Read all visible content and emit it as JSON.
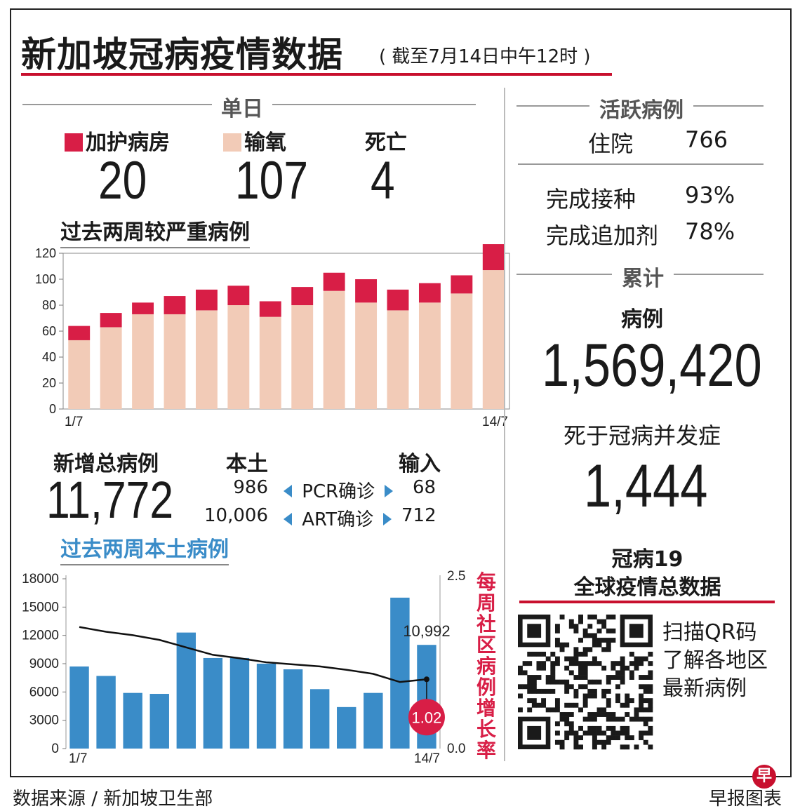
{
  "header": {
    "title": "新加坡冠病疫情数据",
    "subtitle": "( 截至7月14日中午12时 )"
  },
  "daily": {
    "section_label": "单日",
    "icu_label": "加护病房",
    "icu_value": "20",
    "oxygen_label": "输氧",
    "oxygen_value": "107",
    "death_label": "死亡",
    "death_value": "4",
    "colors": {
      "icu": "#d81e46",
      "oxygen": "#f2cbb7"
    }
  },
  "severe_chart_title": "过去两周较严重病例",
  "new_cases": {
    "total_label": "新增总病例",
    "total_value": "11,772",
    "local_label": "本土",
    "imported_label": "输入",
    "pcr_label": "PCR确诊",
    "art_label": "ART确诊",
    "pcr_local": "986",
    "pcr_imported": "68",
    "art_local": "10,006",
    "art_imported": "712"
  },
  "local_chart_title": "过去两周本土病例",
  "right_panel": {
    "active_label": "活跃病例",
    "hosp_label": "住院",
    "hosp_value": "766",
    "vacc_label": "完成接种",
    "vacc_value": "93%",
    "booster_label": "完成追加剂",
    "booster_value": "78%",
    "cumulative_label": "累计",
    "cases_label": "病例",
    "cases_value": "1,569,420",
    "deaths_label": "死于冠病并发症",
    "deaths_value": "1,444",
    "global_title_1": "冠病19",
    "global_title_2": "全球疫情总数据",
    "qr_text_1": "扫描QR码",
    "qr_text_2": "了解各地区",
    "qr_text_3": "最新病例"
  },
  "footer": {
    "source": "数据来源 / 新加坡卫生部",
    "credit": "早报图表",
    "logo_char": "早"
  },
  "chart_data": [
    {
      "type": "bar",
      "title": "过去两周较严重病例",
      "stacked": true,
      "x_tick_labels": [
        "1/7",
        "14/7"
      ],
      "ylim": [
        0,
        120
      ],
      "y_ticks": [
        0,
        20,
        40,
        60,
        80,
        100,
        120
      ],
      "series": [
        {
          "name": "输氧",
          "color": "#f2cbb7",
          "values": [
            53,
            63,
            73,
            73,
            76,
            80,
            71,
            80,
            91,
            82,
            76,
            82,
            89,
            107
          ]
        },
        {
          "name": "加护病房",
          "color": "#d81e46",
          "values": [
            11,
            11,
            9,
            14,
            16,
            15,
            12,
            14,
            14,
            18,
            16,
            15,
            14,
            20
          ]
        }
      ],
      "grid": false
    },
    {
      "type": "bar",
      "title": "过去两周本土病例",
      "x_tick_labels": [
        "1/7",
        "14/7"
      ],
      "ylim": [
        0,
        18000
      ],
      "y_ticks": [
        "0",
        "3000",
        "6000",
        "9000",
        "12000",
        "15000",
        "18000"
      ],
      "bar_color": "#3a8cc8",
      "values": [
        8700,
        7700,
        5900,
        5800,
        12300,
        9600,
        9600,
        9000,
        8400,
        6300,
        4400,
        5900,
        16000,
        10992
      ],
      "bar_label_last": "10,992",
      "secondary_axis": {
        "label": "每周社区病例增长率",
        "ylim": [
          0.0,
          2.5
        ],
        "tick_labels": [
          "0.0",
          "2.5"
        ],
        "line_values": [
          1.79,
          1.72,
          1.67,
          1.6,
          1.49,
          1.38,
          1.33,
          1.27,
          1.24,
          1.21,
          1.16,
          1.1,
          0.98,
          1.02
        ],
        "last_label": "1.02",
        "line_color": "#111111",
        "badge_color": "#d81e46"
      }
    }
  ]
}
